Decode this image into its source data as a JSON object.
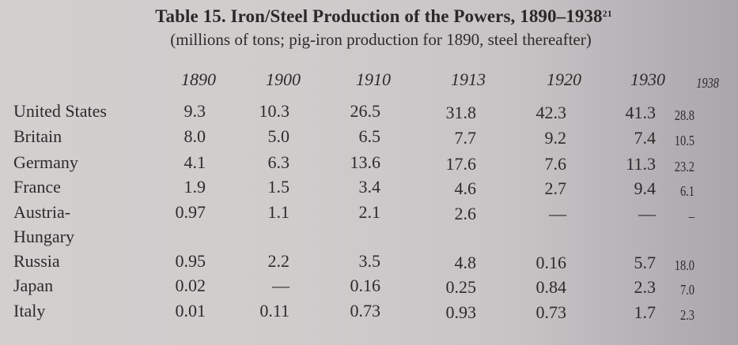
{
  "table": {
    "title": "Table 15. Iron/Steel Production of the Powers, 1890–1938",
    "footnote_ref": "21",
    "subtitle": "(millions of tons; pig-iron production for 1890, steel thereafter)",
    "columns": [
      "1890",
      "1900",
      "1910",
      "1913",
      "1920",
      "1930",
      "1938"
    ],
    "rows": [
      {
        "country": "United States",
        "values": [
          "9.3",
          "10.3",
          "26.5",
          "31.8",
          "42.3",
          "41.3",
          "28.8"
        ]
      },
      {
        "country": "Britain",
        "values": [
          "8.0",
          "5.0",
          "6.5",
          "7.7",
          "9.2",
          "7.4",
          "10.5"
        ]
      },
      {
        "country": "Germany",
        "values": [
          "4.1",
          "6.3",
          "13.6",
          "17.6",
          "7.6",
          "11.3",
          "23.2"
        ]
      },
      {
        "country": "France",
        "values": [
          "1.9",
          "1.5",
          "3.4",
          "4.6",
          "2.7",
          "9.4",
          "6.1"
        ]
      },
      {
        "country": "Austria-",
        "country_line2": "Hungary",
        "values": [
          "0.97",
          "1.1",
          "2.1",
          "2.6",
          "—",
          "—",
          "–"
        ]
      },
      {
        "country": "Russia",
        "values": [
          "0.95",
          "2.2",
          "3.5",
          "4.8",
          "0.16",
          "5.7",
          "18.0"
        ]
      },
      {
        "country": "Japan",
        "values": [
          "0.02",
          "—",
          "0.16",
          "0.25",
          "0.84",
          "2.3",
          "7.0"
        ]
      },
      {
        "country": "Italy",
        "values": [
          "0.01",
          "0.11",
          "0.73",
          "0.93",
          "0.73",
          "1.7",
          "2.3"
        ]
      }
    ]
  }
}
